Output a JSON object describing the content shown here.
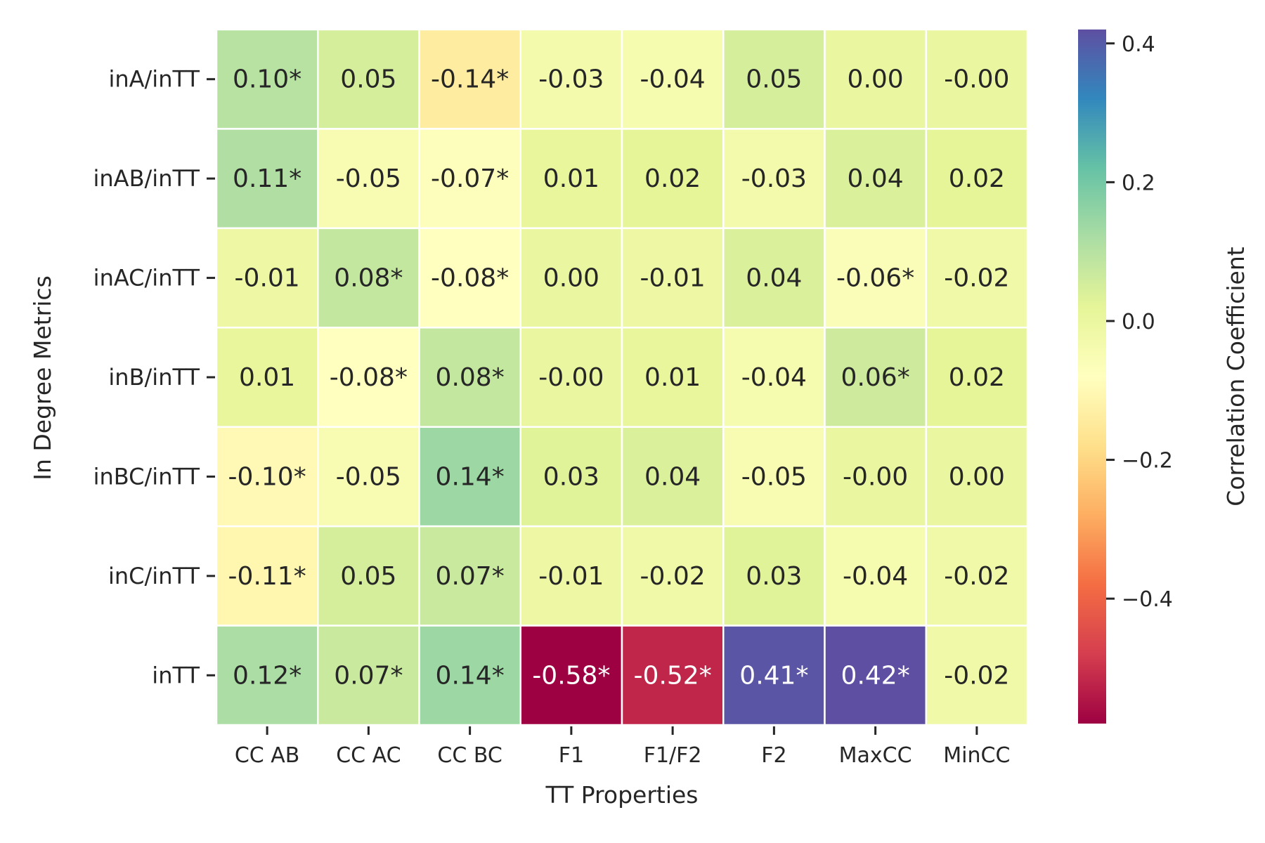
{
  "chart_data": {
    "type": "heatmap",
    "title": "",
    "xlabel": "TT Properties",
    "ylabel": "In Degree Metrics",
    "x_categories": [
      "CC AB",
      "CC AC",
      "CC BC",
      "F1",
      "F1/F2",
      "F2",
      "MaxCC",
      "MinCC"
    ],
    "y_categories": [
      "inA/inTT",
      "inAB/inTT",
      "inAC/inTT",
      "inB/inTT",
      "inBC/inTT",
      "inC/inTT",
      "inTT"
    ],
    "values": [
      [
        0.1,
        0.05,
        -0.14,
        -0.03,
        -0.04,
        0.05,
        0.0,
        -0.0
      ],
      [
        0.11,
        -0.05,
        -0.07,
        0.01,
        0.02,
        -0.03,
        0.04,
        0.02
      ],
      [
        -0.01,
        0.08,
        -0.08,
        0.0,
        -0.01,
        0.04,
        -0.06,
        -0.02
      ],
      [
        0.01,
        -0.08,
        0.08,
        -0.0,
        0.01,
        -0.04,
        0.06,
        0.02
      ],
      [
        -0.1,
        -0.05,
        0.14,
        0.03,
        0.04,
        -0.05,
        -0.0,
        0.0
      ],
      [
        -0.11,
        0.05,
        0.07,
        -0.01,
        -0.02,
        0.03,
        -0.04,
        -0.02
      ],
      [
        0.12,
        0.07,
        0.14,
        -0.58,
        -0.52,
        0.41,
        0.42,
        -0.02
      ]
    ],
    "cell_labels": [
      [
        "0.10*",
        "0.05",
        "-0.14*",
        "-0.03",
        "-0.04",
        "0.05",
        "0.00",
        "-0.00"
      ],
      [
        "0.11*",
        "-0.05",
        "-0.07*",
        "0.01",
        "0.02",
        "-0.03",
        "0.04",
        "0.02"
      ],
      [
        "-0.01",
        "0.08*",
        "-0.08*",
        "0.00",
        "-0.01",
        "0.04",
        "-0.06*",
        "-0.02"
      ],
      [
        "0.01",
        "-0.08*",
        "0.08*",
        "-0.00",
        "0.01",
        "-0.04",
        "0.06*",
        "0.02"
      ],
      [
        "-0.10*",
        "-0.05",
        "0.14*",
        "0.03",
        "0.04",
        "-0.05",
        "-0.00",
        "0.00"
      ],
      [
        "-0.11*",
        "0.05",
        "0.07*",
        "-0.01",
        "-0.02",
        "0.03",
        "-0.04",
        "-0.02"
      ],
      [
        "0.12*",
        "0.07*",
        "0.14*",
        "-0.58*",
        "-0.52*",
        "0.41*",
        "0.42*",
        "-0.02"
      ]
    ],
    "colormap": "Spectral",
    "colormap_stops": [
      "#9e0142",
      "#d53e4f",
      "#f46d43",
      "#fdae61",
      "#fee08b",
      "#ffffbf",
      "#e6f598",
      "#abdda4",
      "#66c2a5",
      "#3288bd",
      "#5e4fa2"
    ],
    "vmin": -0.58,
    "vmax": 0.42,
    "colorbar": {
      "label": "Correlation Coefficient",
      "ticks": [
        0.4,
        0.2,
        0.0,
        -0.2,
        -0.4
      ],
      "tick_labels": [
        "0.4",
        "0.2",
        "0.0",
        "−0.2",
        "−0.4"
      ]
    },
    "grid_line_color": "#ffffff"
  }
}
